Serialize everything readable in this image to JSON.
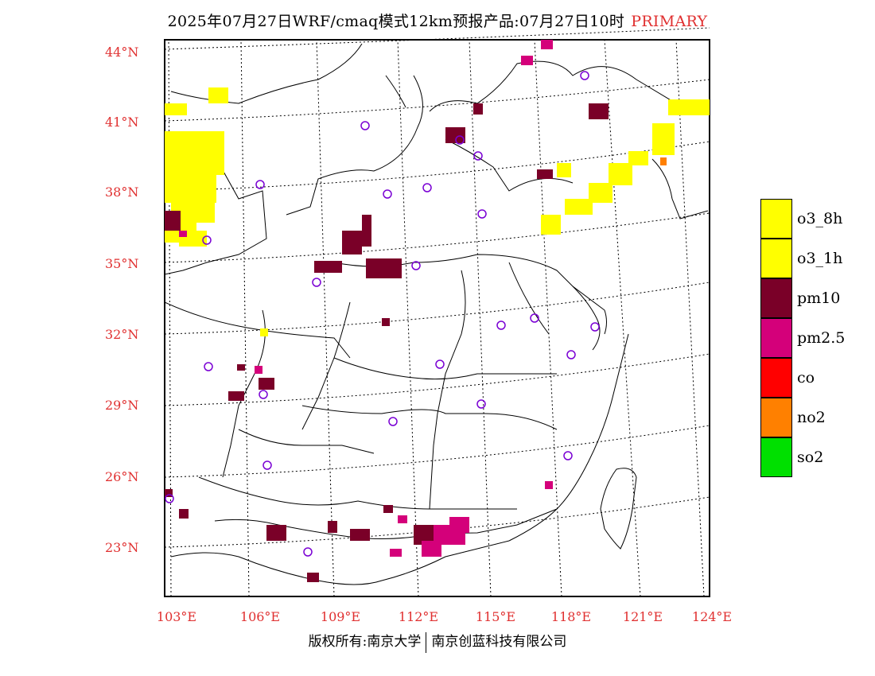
{
  "title": {
    "main": "2025年07月27日WRF/cmaq模式12km预报产品:07月27日10时",
    "tag": "PRIMARY"
  },
  "map": {
    "lat_labels": [
      "44°N",
      "41°N",
      "38°N",
      "35°N",
      "32°N",
      "29°N",
      "26°N",
      "23°N"
    ],
    "lon_labels": [
      "103°E",
      "106°E",
      "109°E",
      "112°E",
      "115°E",
      "118°E",
      "121°E",
      "124°E"
    ]
  },
  "legend": {
    "items": [
      {
        "label": "o3_8h",
        "color": "#ffff00"
      },
      {
        "label": "o3_1h",
        "color": "#ffff00"
      },
      {
        "label": "pm10",
        "color": "#7a0028"
      },
      {
        "label": "pm2.5",
        "color": "#d4007a"
      },
      {
        "label": "co",
        "color": "#ff0000"
      },
      {
        "label": "no2",
        "color": "#ff8000"
      },
      {
        "label": "so2",
        "color": "#00e000"
      }
    ]
  },
  "footer": {
    "left": "版权所有:南京大学",
    "right": "南京创蓝科技有限公司"
  }
}
